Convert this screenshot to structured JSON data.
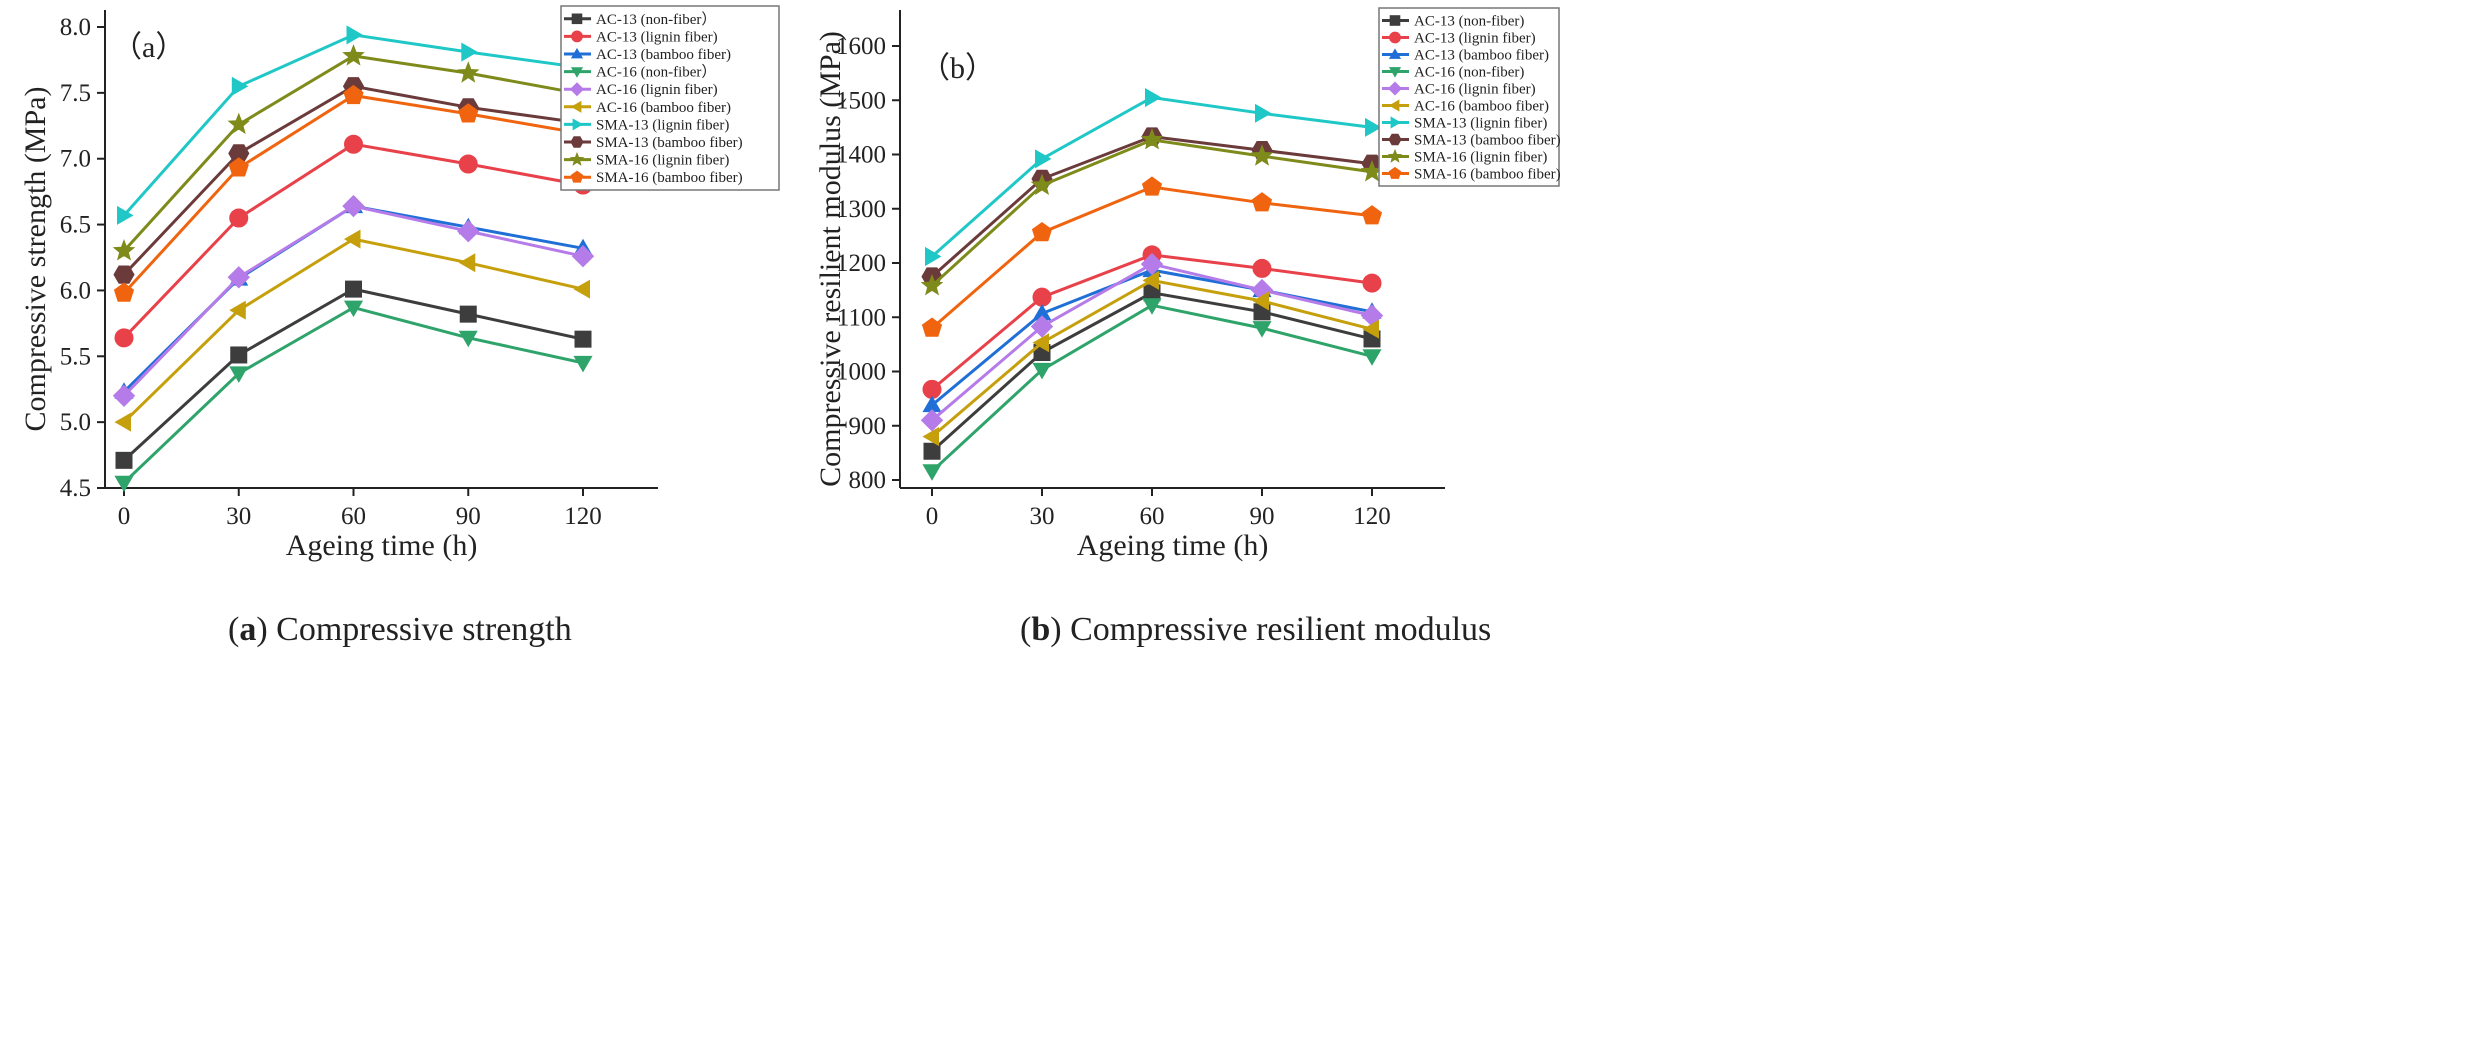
{
  "chart_data": [
    {
      "type": "line",
      "panel_label": "（a）",
      "caption_bold": "a",
      "caption_text": ") Compressive strength",
      "caption_open": "(",
      "xlabel": "Ageing time (h)",
      "ylabel": "Compressive strength (MPa)",
      "x": [
        0,
        30,
        60,
        90,
        120
      ],
      "x_ticks": [
        "0",
        "30",
        "60",
        "90",
        "120"
      ],
      "xlim": [
        -10,
        140
      ],
      "ylim": [
        4.5,
        8.0
      ],
      "y_ticks": [
        "4.5",
        "5.0",
        "5.5",
        "6.0",
        "6.5",
        "7.0",
        "7.5",
        "8.0"
      ],
      "y_tick_values": [
        4.5,
        5.0,
        5.5,
        6.0,
        6.5,
        7.0,
        7.5,
        8.0
      ],
      "legend_position": "top-right",
      "grid": false,
      "series": [
        {
          "name": "AC-13 (non-fiber）",
          "marker": "square",
          "color": "#3d3d3d",
          "values": [
            4.71,
            5.51,
            6.01,
            5.82,
            5.63
          ]
        },
        {
          "name": "AC-13 (lignin fiber)",
          "marker": "circle",
          "color": "#e8414a",
          "values": [
            5.64,
            6.55,
            7.11,
            6.96,
            6.8
          ]
        },
        {
          "name": "AC-13 (bamboo fiber)",
          "marker": "triangle-up",
          "color": "#1f6fd6",
          "values": [
            5.23,
            6.09,
            6.64,
            6.48,
            6.32
          ]
        },
        {
          "name": "AC-16 (non-fiber）",
          "marker": "triangle-down",
          "color": "#2ea36a",
          "values": [
            4.54,
            5.37,
            5.87,
            5.64,
            5.45
          ]
        },
        {
          "name": "AC-16 (lignin fiber)",
          "marker": "diamond",
          "color": "#b57be8",
          "values": [
            5.2,
            6.1,
            6.64,
            6.45,
            6.26
          ]
        },
        {
          "name": "AC-16 (bamboo fiber)",
          "marker": "triangle-left",
          "color": "#c6a00c",
          "values": [
            5.0,
            5.85,
            6.39,
            6.21,
            6.01
          ]
        },
        {
          "name": "SMA-13 (lignin fiber)",
          "marker": "triangle-right",
          "color": "#1fc7c7",
          "values": [
            6.57,
            7.55,
            7.94,
            7.81,
            7.69
          ]
        },
        {
          "name": "SMA-13 (bamboo fiber)",
          "marker": "hexagon",
          "color": "#6b3a3a",
          "values": [
            6.12,
            7.04,
            7.55,
            7.39,
            7.27
          ]
        },
        {
          "name": "SMA-16 (lignin fiber)",
          "marker": "star",
          "color": "#7e8a1a",
          "values": [
            6.3,
            7.26,
            7.78,
            7.65,
            7.49
          ]
        },
        {
          "name": "SMA-16 (bamboo fiber)",
          "marker": "pentagon",
          "color": "#f0640f",
          "values": [
            5.98,
            6.93,
            7.48,
            7.34,
            7.19
          ]
        }
      ]
    },
    {
      "type": "line",
      "panel_label": "（b）",
      "caption_bold": "b",
      "caption_text": ") Compressive resilient modulus",
      "caption_open": "(",
      "xlabel": "Ageing time (h)",
      "ylabel": "Compressive resilient modulus (MPa)",
      "x": [
        0,
        30,
        60,
        90,
        120
      ],
      "x_ticks": [
        "0",
        "30",
        "60",
        "90",
        "120"
      ],
      "xlim": [
        -10,
        140
      ],
      "ylim": [
        800,
        1600
      ],
      "y_ticks": [
        "800",
        "900",
        "1000",
        "1100",
        "1200",
        "1300",
        "1400",
        "1500",
        "1600"
      ],
      "y_tick_values": [
        800,
        900,
        1000,
        1100,
        1200,
        1300,
        1400,
        1500,
        1600
      ],
      "legend_position": "top-right",
      "grid": false,
      "series": [
        {
          "name": "AC-13 (non-fiber)",
          "marker": "square",
          "color": "#3d3d3d",
          "values": [
            853,
            1035,
            1145,
            1110,
            1060
          ]
        },
        {
          "name": "AC-13 (lignin fiber)",
          "marker": "circle",
          "color": "#e8414a",
          "values": [
            967,
            1137,
            1215,
            1190,
            1163
          ]
        },
        {
          "name": "AC-13 (bamboo fiber)",
          "marker": "triangle-up",
          "color": "#1f6fd6",
          "values": [
            938,
            1107,
            1187,
            1150,
            1110
          ]
        },
        {
          "name": "AC-16 (non-fiber)",
          "marker": "triangle-down",
          "color": "#2ea36a",
          "values": [
            816,
            1003,
            1122,
            1080,
            1028
          ]
        },
        {
          "name": "AC-16 (lignin fiber)",
          "marker": "diamond",
          "color": "#b57be8",
          "values": [
            910,
            1083,
            1198,
            1150,
            1103
          ]
        },
        {
          "name": "AC-16 (bamboo fiber)",
          "marker": "triangle-left",
          "color": "#c6a00c",
          "values": [
            880,
            1053,
            1168,
            1130,
            1078
          ]
        },
        {
          "name": "SMA-13 (lignin fiber)",
          "marker": "triangle-right",
          "color": "#1fc7c7",
          "values": [
            1212,
            1392,
            1505,
            1476,
            1450
          ]
        },
        {
          "name": "SMA-13 (bamboo fiber)",
          "marker": "hexagon",
          "color": "#6b3a3a",
          "values": [
            1175,
            1355,
            1433,
            1408,
            1383
          ]
        },
        {
          "name": "SMA-16 (lignin fiber)",
          "marker": "star",
          "color": "#7e8a1a",
          "values": [
            1158,
            1343,
            1427,
            1397,
            1368
          ]
        },
        {
          "name": "SMA-16 (bamboo fiber)",
          "marker": "pentagon",
          "color": "#f0640f",
          "values": [
            1080,
            1256,
            1340,
            1311,
            1287
          ]
        }
      ]
    }
  ]
}
